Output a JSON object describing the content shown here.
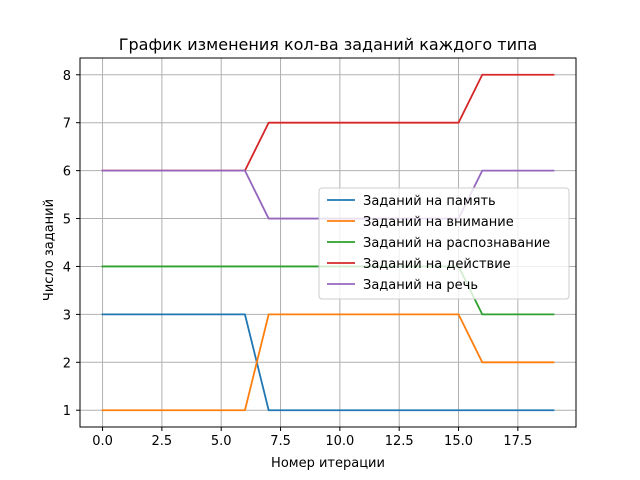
{
  "chart_data": {
    "type": "line",
    "title": "График изменения кол-ва заданий каждого типа",
    "xlabel": "Номер итерации",
    "ylabel": "Число заданий",
    "xlim": [
      -0.95,
      19.95
    ],
    "ylim": [
      0.65,
      8.35
    ],
    "xticks": [
      0.0,
      2.5,
      5.0,
      7.5,
      10.0,
      12.5,
      15.0,
      17.5
    ],
    "xtick_labels": [
      "0.0",
      "2.5",
      "5.0",
      "7.5",
      "10.0",
      "12.5",
      "15.0",
      "17.5"
    ],
    "yticks": [
      1,
      2,
      3,
      4,
      5,
      6,
      7,
      8
    ],
    "ytick_labels": [
      "1",
      "2",
      "3",
      "4",
      "5",
      "6",
      "7",
      "8"
    ],
    "grid": true,
    "legend_position": "center-right",
    "x": [
      0,
      1,
      2,
      3,
      4,
      5,
      6,
      7,
      8,
      9,
      10,
      11,
      12,
      13,
      14,
      15,
      16,
      17,
      18,
      19
    ],
    "series": [
      {
        "name": "Заданий на память",
        "color": "#1f77b4",
        "values": [
          3,
          3,
          3,
          3,
          3,
          3,
          3,
          1,
          1,
          1,
          1,
          1,
          1,
          1,
          1,
          1,
          1,
          1,
          1,
          1
        ]
      },
      {
        "name": "Заданий на внимание",
        "color": "#ff7f0e",
        "values": [
          1,
          1,
          1,
          1,
          1,
          1,
          1,
          3,
          3,
          3,
          3,
          3,
          3,
          3,
          3,
          3,
          2,
          2,
          2,
          2
        ]
      },
      {
        "name": "Заданий на распознавание",
        "color": "#2ca02c",
        "values": [
          4,
          4,
          4,
          4,
          4,
          4,
          4,
          4,
          4,
          4,
          4,
          4,
          4,
          4,
          4,
          4,
          3,
          3,
          3,
          3
        ]
      },
      {
        "name": "Заданий на действие",
        "color": "#d62728",
        "values": [
          6,
          6,
          6,
          6,
          6,
          6,
          6,
          7,
          7,
          7,
          7,
          7,
          7,
          7,
          7,
          7,
          8,
          8,
          8,
          8
        ]
      },
      {
        "name": "Заданий на речь",
        "color": "#9467bd",
        "values": [
          6,
          6,
          6,
          6,
          6,
          6,
          6,
          5,
          5,
          5,
          5,
          5,
          5,
          5,
          5,
          5,
          6,
          6,
          6,
          6
        ]
      }
    ]
  }
}
